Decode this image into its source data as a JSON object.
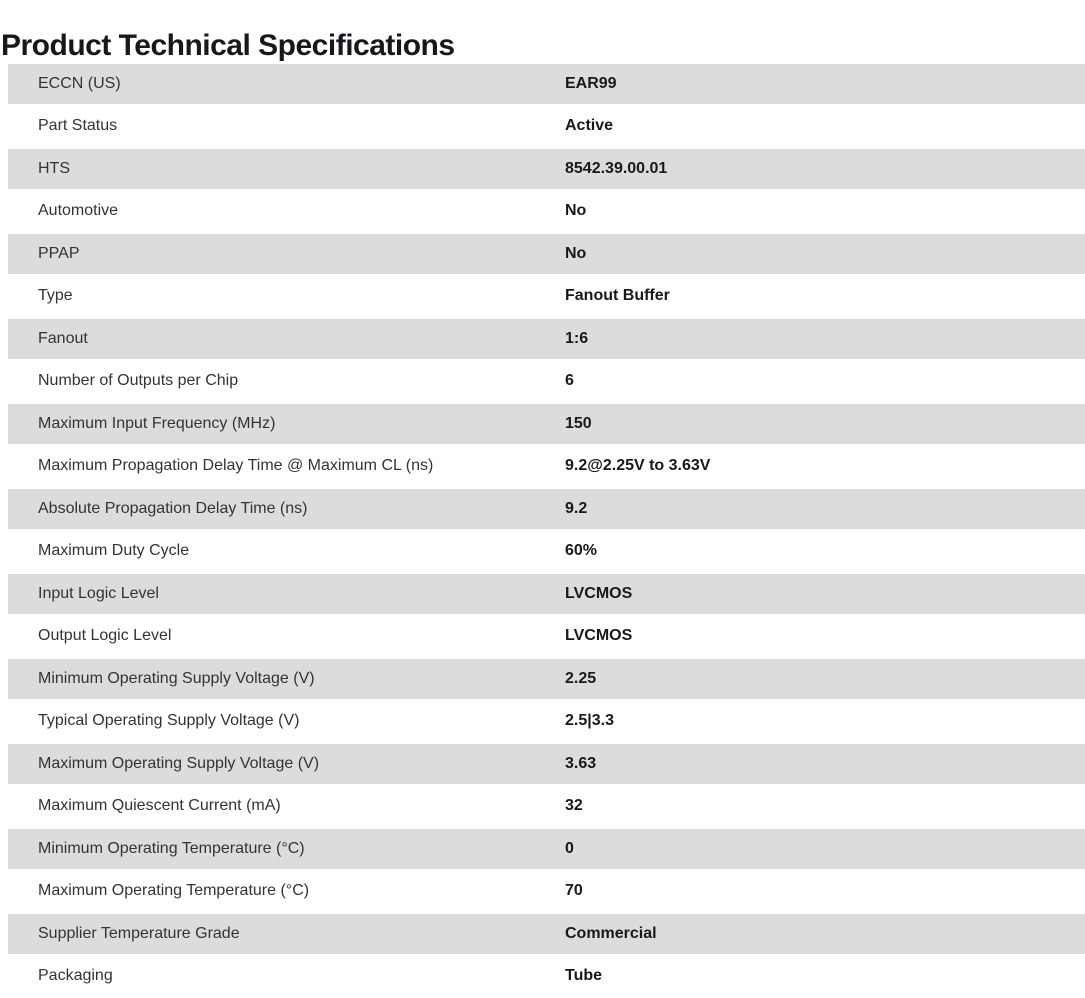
{
  "page": {
    "title": "Product Technical Specifications"
  },
  "colors": {
    "row_alt_bg": "#dcdcdc",
    "row_bg": "#ffffff",
    "title_color": "#18181c",
    "label_color": "#333333",
    "value_color": "#191919"
  },
  "spec_table": {
    "rows": [
      {
        "label": "ECCN (US)",
        "value": "EAR99"
      },
      {
        "label": "Part Status",
        "value": "Active"
      },
      {
        "label": "HTS",
        "value": "8542.39.00.01"
      },
      {
        "label": "Automotive",
        "value": "No"
      },
      {
        "label": "PPAP",
        "value": "No"
      },
      {
        "label": "Type",
        "value": "Fanout Buffer"
      },
      {
        "label": "Fanout",
        "value": "1:6"
      },
      {
        "label": "Number of Outputs per Chip",
        "value": "6"
      },
      {
        "label": "Maximum Input Frequency (MHz)",
        "value": "150"
      },
      {
        "label": "Maximum Propagation Delay Time @ Maximum CL (ns)",
        "value": "9.2@2.25V to 3.63V"
      },
      {
        "label": "Absolute Propagation Delay Time (ns)",
        "value": "9.2"
      },
      {
        "label": "Maximum Duty Cycle",
        "value": "60%"
      },
      {
        "label": "Input Logic Level",
        "value": "LVCMOS"
      },
      {
        "label": "Output Logic Level",
        "value": "LVCMOS"
      },
      {
        "label": "Minimum Operating Supply Voltage (V)",
        "value": "2.25"
      },
      {
        "label": "Typical Operating Supply Voltage (V)",
        "value": "2.5|3.3"
      },
      {
        "label": "Maximum Operating Supply Voltage (V)",
        "value": "3.63"
      },
      {
        "label": "Maximum Quiescent Current (mA)",
        "value": "32"
      },
      {
        "label": "Minimum Operating Temperature (°C)",
        "value": "0"
      },
      {
        "label": "Maximum Operating Temperature (°C)",
        "value": "70"
      },
      {
        "label": "Supplier Temperature Grade",
        "value": "Commercial"
      },
      {
        "label": "Packaging",
        "value": "Tube"
      }
    ]
  }
}
